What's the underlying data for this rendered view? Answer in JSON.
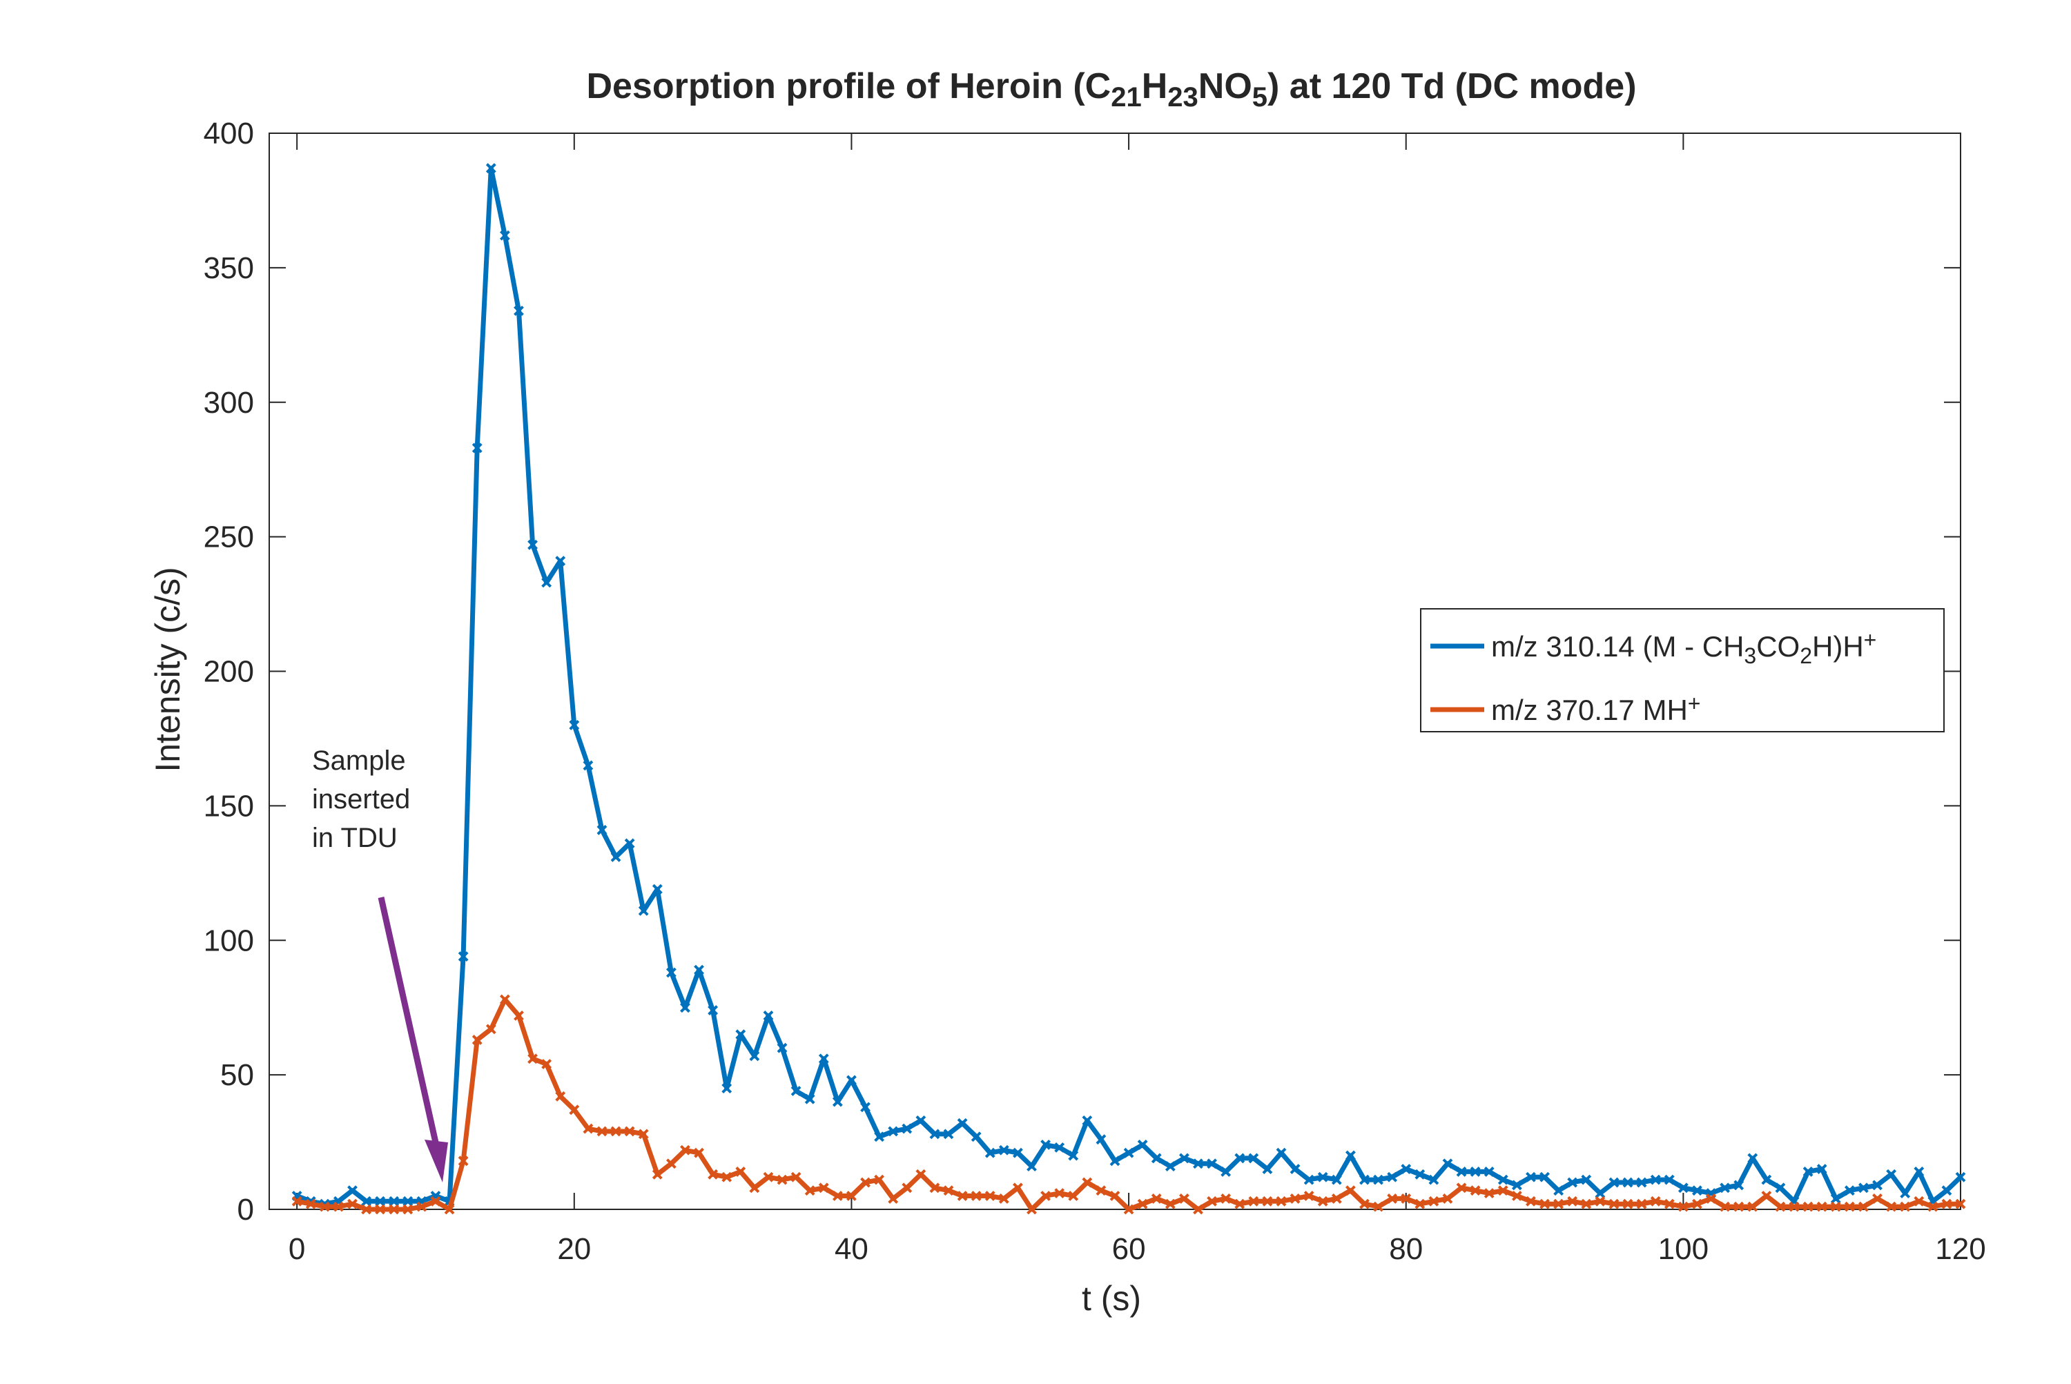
{
  "chart_data": {
    "type": "line",
    "title": {
      "parts": [
        {
          "text": "Desorption profile of Heroin (C",
          "sub": false
        },
        {
          "text": "21",
          "sub": true
        },
        {
          "text": "H",
          "sub": false
        },
        {
          "text": "23",
          "sub": true
        },
        {
          "text": "NO",
          "sub": false
        },
        {
          "text": "5",
          "sub": true
        },
        {
          "text": ") at 120 Td (DC mode)",
          "sub": false
        }
      ]
    },
    "xlabel": "t (s)",
    "ylabel": "Intensity (c/s)",
    "xlim": [
      -2,
      120
    ],
    "ylim": [
      0,
      400
    ],
    "xticks": [
      0,
      20,
      40,
      60,
      80,
      100,
      120
    ],
    "yticks": [
      0,
      50,
      100,
      150,
      200,
      250,
      300,
      350,
      400
    ],
    "grid": false,
    "legend_position": "right",
    "annotation": {
      "lines": [
        "Sample",
        "inserted",
        "in TDU"
      ],
      "arrow_color": "#7E2F8E",
      "arrow_target": {
        "x": 10.5,
        "y": 10
      }
    },
    "series": [
      {
        "name_parts": [
          {
            "text": "m/z 310.14 (M - CH",
            "mode": "normal"
          },
          {
            "text": "3",
            "mode": "sub"
          },
          {
            "text": "CO",
            "mode": "normal"
          },
          {
            "text": "2",
            "mode": "sub"
          },
          {
            "text": "H)H",
            "mode": "normal"
          },
          {
            "text": "+",
            "mode": "sup"
          }
        ],
        "color": "#0072BD",
        "x": [
          0,
          1,
          2,
          3,
          4,
          5,
          6,
          7,
          8,
          9,
          10,
          11,
          12,
          13,
          14,
          15,
          16,
          17,
          18,
          19,
          20,
          21,
          22,
          23,
          24,
          25,
          26,
          27,
          28,
          29,
          30,
          31,
          32,
          33,
          34,
          35,
          36,
          37,
          38,
          39,
          40,
          41,
          42,
          43,
          44,
          45,
          46,
          47,
          48,
          49,
          50,
          51,
          52,
          53,
          54,
          55,
          56,
          57,
          58,
          59,
          60,
          61,
          62,
          63,
          64,
          65,
          66,
          67,
          68,
          69,
          70,
          71,
          72,
          73,
          74,
          75,
          76,
          77,
          78,
          79,
          80,
          81,
          82,
          83,
          84,
          85,
          86,
          87,
          88,
          89,
          90,
          91,
          92,
          93,
          94,
          95,
          96,
          97,
          98,
          99,
          100,
          101,
          102,
          103,
          104,
          105,
          106,
          107,
          108,
          109,
          110,
          111,
          112,
          113,
          114,
          115,
          116,
          117,
          118,
          119,
          120
        ],
        "y": [
          5,
          3,
          2,
          3,
          7,
          3,
          3,
          3,
          3,
          3,
          5,
          3,
          94,
          283,
          387,
          362,
          334,
          247,
          233,
          241,
          180,
          165,
          141,
          131,
          136,
          111,
          119,
          88,
          75,
          89,
          74,
          45,
          65,
          57,
          72,
          60,
          44,
          41,
          56,
          40,
          48,
          38,
          27,
          29,
          30,
          33,
          28,
          28,
          32,
          27,
          21,
          22,
          21,
          16,
          24,
          23,
          20,
          33,
          26,
          18,
          21,
          24,
          19,
          16,
          19,
          17,
          17,
          14,
          19,
          19,
          15,
          21,
          15,
          11,
          12,
          11,
          20,
          11,
          11,
          12,
          15,
          13,
          11,
          17,
          14,
          14,
          14,
          11,
          9,
          12,
          12,
          7,
          10,
          11,
          6,
          10,
          10,
          10,
          11,
          11,
          8,
          7,
          6,
          8,
          9,
          19,
          11,
          8,
          3,
          14,
          15,
          4,
          7,
          8,
          9,
          13,
          6,
          14,
          3,
          7,
          12
        ]
      },
      {
        "name_parts": [
          {
            "text": "m/z 370.17 MH",
            "mode": "normal"
          },
          {
            "text": "+",
            "mode": "sup"
          }
        ],
        "color": "#D95319",
        "x": [
          0,
          1,
          2,
          3,
          4,
          5,
          6,
          7,
          8,
          9,
          10,
          11,
          12,
          13,
          14,
          15,
          16,
          17,
          18,
          19,
          20,
          21,
          22,
          23,
          24,
          25,
          26,
          27,
          28,
          29,
          30,
          31,
          32,
          33,
          34,
          35,
          36,
          37,
          38,
          39,
          40,
          41,
          42,
          43,
          44,
          45,
          46,
          47,
          48,
          49,
          50,
          51,
          52,
          53,
          54,
          55,
          56,
          57,
          58,
          59,
          60,
          61,
          62,
          63,
          64,
          65,
          66,
          67,
          68,
          69,
          70,
          71,
          72,
          73,
          74,
          75,
          76,
          77,
          78,
          79,
          80,
          81,
          82,
          83,
          84,
          85,
          86,
          87,
          88,
          89,
          90,
          91,
          92,
          93,
          94,
          95,
          96,
          97,
          98,
          99,
          100,
          101,
          102,
          103,
          104,
          105,
          106,
          107,
          108,
          109,
          110,
          111,
          112,
          113,
          114,
          115,
          116,
          117,
          118,
          119,
          120
        ],
        "y": [
          3,
          2,
          1,
          1,
          2,
          0,
          0,
          0,
          0,
          1,
          3,
          0,
          18,
          63,
          67,
          78,
          72,
          56,
          54,
          42,
          37,
          30,
          29,
          29,
          29,
          28,
          13,
          17,
          22,
          21,
          13,
          12,
          14,
          8,
          12,
          11,
          12,
          7,
          8,
          5,
          5,
          10,
          11,
          4,
          8,
          13,
          8,
          7,
          5,
          5,
          5,
          4,
          8,
          0,
          5,
          6,
          5,
          10,
          7,
          5,
          0,
          2,
          4,
          2,
          4,
          0,
          3,
          4,
          2,
          3,
          3,
          3,
          4,
          5,
          3,
          4,
          7,
          2,
          1,
          4,
          4,
          2,
          3,
          4,
          8,
          7,
          6,
          7,
          5,
          3,
          2,
          2,
          3,
          2,
          3,
          2,
          2,
          2,
          3,
          2,
          1,
          2,
          4,
          1,
          1,
          1,
          5,
          1,
          1,
          1,
          1,
          1,
          1,
          1,
          4,
          1,
          1,
          3,
          1,
          2,
          2
        ]
      }
    ]
  }
}
